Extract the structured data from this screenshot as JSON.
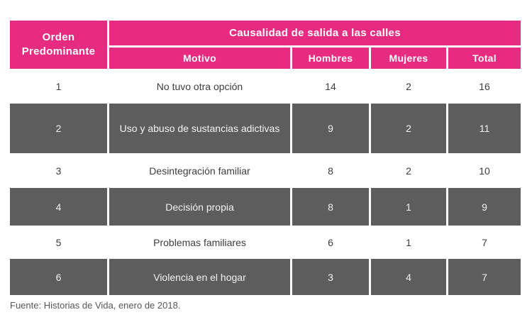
{
  "colors": {
    "header_pink": "#e72b80",
    "row_gray": "#5e5d5d",
    "text_dark": "#3d3d3d",
    "text_light": "#f2f2f2",
    "footer_gray": "#575757",
    "page_bg": "#ffffff"
  },
  "table": {
    "header": {
      "col_orden": "Orden Predominante",
      "causalidad": "Causalidad de salida a las calles",
      "motivo": "Motivo",
      "hombres": "Hombres",
      "mujeres": "Mujeres",
      "total": "Total"
    },
    "rows": [
      {
        "orden": "1",
        "motivo": "No tuvo otra opción",
        "hombres": "14",
        "mujeres": "2",
        "total": "16"
      },
      {
        "orden": "2",
        "motivo": "Uso y abuso de sustancias adictivas",
        "hombres": "9",
        "mujeres": "2",
        "total": "11"
      },
      {
        "orden": "3",
        "motivo": "Desintegración familiar",
        "hombres": "8",
        "mujeres": "2",
        "total": "10"
      },
      {
        "orden": "4",
        "motivo": "Decisión propia",
        "hombres": "8",
        "mujeres": "1",
        "total": "9"
      },
      {
        "orden": "5",
        "motivo": "Problemas familiares",
        "hombres": "6",
        "mujeres": "1",
        "total": "7"
      },
      {
        "orden": "6",
        "motivo": "Violencia en el hogar",
        "hombres": "3",
        "mujeres": "4",
        "total": "7"
      }
    ]
  },
  "footer": {
    "source": "Fuente: Historias de Vida, enero de 2018."
  }
}
